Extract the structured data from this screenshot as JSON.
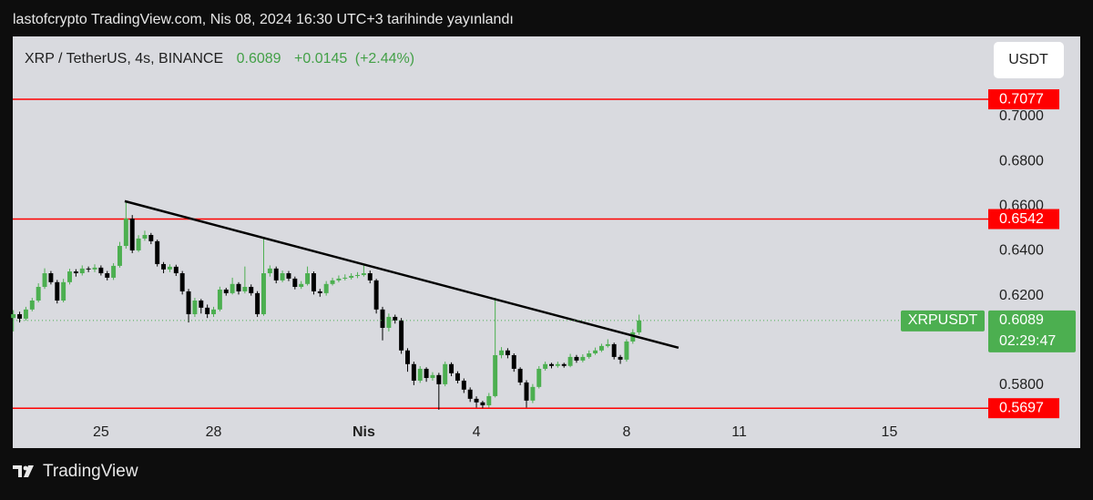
{
  "header": {
    "text": "lastofcrypto TradingView.com, Nis 08, 2024 16:30 UTC+3 tarihinde yayınlandı"
  },
  "chart_data": {
    "type": "candlestick",
    "title": "XRP / TetherUS, 4s, BINANCE",
    "last": 0.6089,
    "change": {
      "value": 0.0145,
      "label": "+0.0145"
    },
    "change_pct": {
      "value": 2.44,
      "label": "(+2.44%)"
    },
    "currency": "USDT",
    "symbol": "XRPUSDT",
    "countdown": "02:29:47",
    "up_color": "#4caf50",
    "down_color": "#000000",
    "level_color": "#ff0000",
    "trend_color": "#000000",
    "categories": [
      null,
      null,
      null,
      null,
      null,
      null,
      null,
      null,
      null,
      null,
      null,
      null,
      null,
      null,
      null,
      null,
      null,
      null,
      null,
      null,
      null,
      null,
      null,
      null,
      null,
      null,
      null,
      null,
      null,
      null,
      null,
      null,
      null,
      null,
      null,
      null,
      null,
      null,
      null,
      null,
      null,
      null,
      null,
      null,
      null,
      null,
      null,
      null,
      null,
      null,
      null,
      null,
      null,
      null,
      null,
      null,
      null,
      null,
      null,
      null,
      null,
      null,
      null,
      null,
      null,
      null,
      null,
      null,
      null,
      null,
      null,
      null,
      null,
      null,
      null,
      null,
      null,
      null,
      null,
      null,
      null,
      null,
      null,
      null,
      null,
      null,
      null,
      null,
      null,
      null,
      null,
      null,
      null,
      null,
      null,
      null,
      null,
      null,
      null,
      null,
      null
    ],
    "open": [
      0.61,
      0.6117,
      0.6097,
      0.6138,
      0.6178,
      0.6239,
      0.63,
      0.626,
      0.6178,
      0.626,
      0.6308,
      0.63,
      0.6321,
      0.6317,
      0.6325,
      0.63,
      0.628,
      0.6333,
      0.6422,
      0.6544,
      0.6402,
      0.6455,
      0.6471,
      0.6443,
      0.6341,
      0.6317,
      0.6329,
      0.63,
      0.6219,
      0.6117,
      0.6178,
      0.6146,
      0.6117,
      0.6138,
      0.6227,
      0.6211,
      0.6252,
      0.6219,
      0.6239,
      0.6211,
      0.6117,
      0.63,
      0.6321,
      0.6268,
      0.63,
      0.6276,
      0.6239,
      0.6252,
      0.63,
      0.6219,
      0.6211,
      0.6252,
      0.6268,
      0.6276,
      0.628,
      0.6288,
      0.6292,
      0.63,
      0.6268,
      0.6138,
      0.6056,
      0.6105,
      0.6089,
      0.5955,
      0.5894,
      0.582,
      0.5873,
      0.5832,
      0.5845,
      0.5804,
      0.5894,
      0.5853,
      0.582,
      0.578,
      0.5739,
      0.5723,
      0.571,
      0.5751,
      0.5934,
      0.5955,
      0.5934,
      0.5873,
      0.5812,
      0.5731,
      0.5792,
      0.5873,
      0.5894,
      0.5886,
      0.5894,
      0.5886,
      0.5926,
      0.591,
      0.5926,
      0.5942,
      0.5955,
      0.5975,
      0.5983,
      0.5926,
      0.5914,
      0.5995,
      0.6036
    ],
    "high": [
      0.6135,
      0.6128,
      0.615,
      0.619,
      0.6255,
      0.6322,
      0.631,
      0.627,
      0.6275,
      0.632,
      0.6318,
      0.6335,
      0.633,
      0.634,
      0.6335,
      0.631,
      0.6345,
      0.644,
      0.6618,
      0.656,
      0.647,
      0.649,
      0.648,
      0.645,
      0.635,
      0.634,
      0.6338,
      0.631,
      0.623,
      0.619,
      0.6185,
      0.616,
      0.615,
      0.624,
      0.6235,
      0.628,
      0.626,
      0.633,
      0.625,
      0.622,
      0.6455,
      0.6335,
      0.633,
      0.6312,
      0.631,
      0.6285,
      0.6265,
      0.633,
      0.6308,
      0.623,
      0.6265,
      0.628,
      0.629,
      0.6295,
      0.63,
      0.6305,
      0.6335,
      0.6312,
      0.6275,
      0.615,
      0.612,
      0.6115,
      0.61,
      0.5965,
      0.5905,
      0.5885,
      0.588,
      0.5858,
      0.5855,
      0.5905,
      0.5902,
      0.5862,
      0.583,
      0.579,
      0.575,
      0.573,
      0.5765,
      0.619,
      0.597,
      0.5965,
      0.5942,
      0.588,
      0.5822,
      0.5805,
      0.5885,
      0.5905,
      0.59,
      0.5905,
      0.59,
      0.594,
      0.5935,
      0.5938,
      0.5955,
      0.5968,
      0.5985,
      0.6005,
      0.599,
      0.5935,
      0.6005,
      0.605,
      0.6115
    ],
    "low": [
      0.604,
      0.608,
      0.6088,
      0.613,
      0.617,
      0.623,
      0.625,
      0.6165,
      0.617,
      0.625,
      0.6285,
      0.629,
      0.6305,
      0.6305,
      0.629,
      0.6268,
      0.627,
      0.6325,
      0.641,
      0.639,
      0.6395,
      0.6445,
      0.643,
      0.633,
      0.63,
      0.6305,
      0.6288,
      0.6205,
      0.608,
      0.6105,
      0.612,
      0.61,
      0.6105,
      0.613,
      0.62,
      0.6205,
      0.6205,
      0.621,
      0.62,
      0.6105,
      0.611,
      0.6285,
      0.6255,
      0.626,
      0.6265,
      0.6228,
      0.623,
      0.6245,
      0.6205,
      0.6195,
      0.62,
      0.6245,
      0.626,
      0.6268,
      0.6272,
      0.6278,
      0.6285,
      0.6255,
      0.612,
      0.6,
      0.604,
      0.6075,
      0.594,
      0.586,
      0.58,
      0.581,
      0.5815,
      0.582,
      0.569,
      0.5795,
      0.584,
      0.5808,
      0.5765,
      0.5725,
      0.57,
      0.5697,
      0.57,
      0.5745,
      0.592,
      0.592,
      0.586,
      0.58,
      0.57,
      0.572,
      0.5785,
      0.5865,
      0.5875,
      0.5878,
      0.5878,
      0.588,
      0.59,
      0.5902,
      0.5918,
      0.5935,
      0.5948,
      0.5968,
      0.5915,
      0.5895,
      0.5905,
      0.5985,
      0.6025
    ],
    "close": [
      0.6117,
      0.6097,
      0.6138,
      0.6178,
      0.6239,
      0.63,
      0.626,
      0.6178,
      0.626,
      0.6308,
      0.63,
      0.6321,
      0.6317,
      0.6325,
      0.63,
      0.628,
      0.6333,
      0.6422,
      0.6544,
      0.6402,
      0.6455,
      0.6471,
      0.6443,
      0.6341,
      0.6317,
      0.6329,
      0.63,
      0.6219,
      0.6117,
      0.6178,
      0.6146,
      0.6117,
      0.6138,
      0.6227,
      0.6211,
      0.6252,
      0.6219,
      0.6239,
      0.6211,
      0.6117,
      0.63,
      0.6321,
      0.6268,
      0.63,
      0.6276,
      0.6239,
      0.6252,
      0.63,
      0.6219,
      0.6211,
      0.6252,
      0.6268,
      0.6276,
      0.628,
      0.6288,
      0.6292,
      0.63,
      0.6268,
      0.6138,
      0.6056,
      0.6105,
      0.6089,
      0.5955,
      0.5894,
      0.582,
      0.5873,
      0.5832,
      0.5845,
      0.5804,
      0.5894,
      0.5853,
      0.582,
      0.578,
      0.5739,
      0.5723,
      0.571,
      0.5751,
      0.5934,
      0.5955,
      0.5934,
      0.5873,
      0.5812,
      0.5731,
      0.5792,
      0.5873,
      0.5894,
      0.5886,
      0.5894,
      0.5886,
      0.5926,
      0.591,
      0.5926,
      0.5942,
      0.5955,
      0.5975,
      0.5983,
      0.5926,
      0.5914,
      0.5995,
      0.6036,
      0.6089
    ],
    "levels": [
      0.7077,
      0.6542,
      0.5697
    ],
    "trendline": {
      "x": [
        17.8,
        106.3
      ],
      "y": [
        0.6622,
        0.5967
      ]
    },
    "xlim": [
      -0.1,
      155.8
    ],
    "xticks": [
      {
        "value": 14,
        "label": "25"
      },
      {
        "value": 32,
        "label": "28"
      },
      {
        "value": 56,
        "label": "Nis"
      },
      {
        "value": 74,
        "label": "4"
      },
      {
        "value": 98,
        "label": "8"
      },
      {
        "value": 116,
        "label": "11"
      },
      {
        "value": 140,
        "label": "15"
      }
    ],
    "ylim": [
      0.5649,
      0.7358
    ],
    "yticks": [
      {
        "value": 0.58,
        "label": "0.5800"
      },
      {
        "value": 0.62,
        "label": "0.6200"
      },
      {
        "value": 0.64,
        "label": "0.6400"
      },
      {
        "value": 0.66,
        "label": "0.6600"
      },
      {
        "value": 0.68,
        "label": "0.6800"
      },
      {
        "value": 0.7,
        "label": "0.7000"
      }
    ]
  },
  "footer": {
    "brand": "TradingView"
  }
}
